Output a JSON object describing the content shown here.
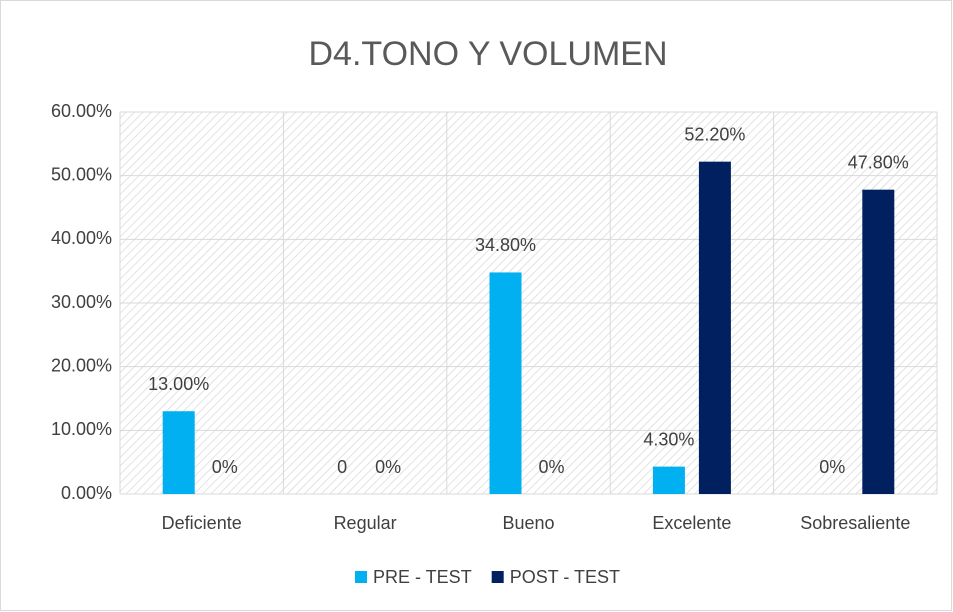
{
  "chart_data": {
    "type": "bar",
    "title": "D4.TONO Y VOLUMEN",
    "categories": [
      "Deficiente",
      "Regular",
      "Bueno",
      "Excelente",
      "Sobresaliente"
    ],
    "series": [
      {
        "name": "PRE - TEST",
        "color": "#00b0f0",
        "values": [
          13.0,
          0,
          34.8,
          4.3,
          0
        ],
        "value_labels": [
          "13.00%",
          "0",
          "34.80%",
          "4.30%",
          "0%"
        ]
      },
      {
        "name": "POST - TEST",
        "color": "#002060",
        "values": [
          0,
          0,
          0,
          52.2,
          47.8
        ],
        "value_labels": [
          "0%",
          "0%",
          "0%",
          "52.20%",
          "47.80%"
        ]
      }
    ],
    "ylim": [
      0,
      60
    ],
    "yticks": [
      {
        "value": 0,
        "label": "0.00%"
      },
      {
        "value": 10,
        "label": "10.00%"
      },
      {
        "value": 20,
        "label": "20.00%"
      },
      {
        "value": 30,
        "label": "30.00%"
      },
      {
        "value": 40,
        "label": "40.00%"
      },
      {
        "value": 50,
        "label": "50.00%"
      },
      {
        "value": 60,
        "label": "60.00%"
      }
    ],
    "grid": true,
    "legend": "bottom"
  }
}
